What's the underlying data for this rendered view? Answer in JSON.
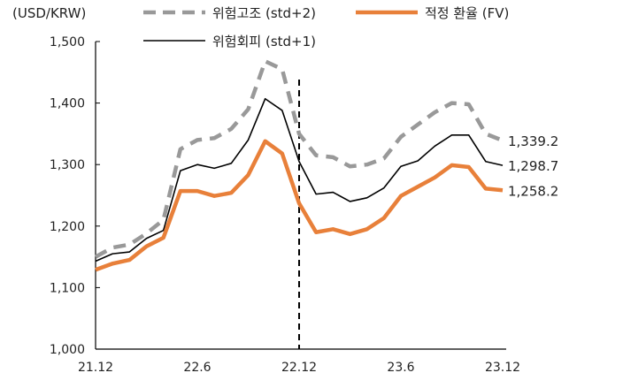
{
  "chart_data": {
    "type": "line",
    "ylabel": "(USD/KRW)",
    "ylim": [
      1000,
      1500
    ],
    "yticks": [
      1000,
      1100,
      1200,
      1300,
      1400,
      1500
    ],
    "ytick_labels": [
      "1,000",
      "1,100",
      "1,200",
      "1,300",
      "1,400",
      "1,500"
    ],
    "xtick_labels": [
      "21.12",
      "22.6",
      "22.12",
      "23.6",
      "23.12"
    ],
    "x": [
      "21.12",
      "22.1",
      "22.2",
      "22.3",
      "22.4",
      "22.5",
      "22.6",
      "22.7",
      "22.8",
      "22.9",
      "22.10",
      "22.11",
      "22.12",
      "23.1",
      "23.2",
      "23.3",
      "23.4",
      "23.5",
      "23.6",
      "23.7",
      "23.8",
      "23.9",
      "23.10",
      "23.11",
      "23.12"
    ],
    "vline_at": "22.12",
    "grid": false,
    "legend_placement": "top",
    "series": [
      {
        "name": "위험고조 (std+2)",
        "color": "#999999",
        "style": "dashed",
        "values": [
          1150,
          1165,
          1170,
          1188,
          1210,
          1325,
          1340,
          1343,
          1358,
          1390,
          1468,
          1455,
          1350,
          1315,
          1312,
          1297,
          1300,
          1310,
          1345,
          1365,
          1385,
          1400,
          1398,
          1350,
          1339.2
        ],
        "end_label": "1,339.2"
      },
      {
        "name": "위험회피 (std+1)",
        "color": "#000000",
        "style": "solid",
        "values": [
          1143,
          1155,
          1158,
          1180,
          1193,
          1290,
          1300,
          1294,
          1302,
          1340,
          1407,
          1388,
          1305,
          1252,
          1255,
          1240,
          1246,
          1262,
          1297,
          1306,
          1330,
          1348,
          1348,
          1305,
          1298.7
        ],
        "end_label": "1,298.7"
      },
      {
        "name": "적정 환율 (FV)",
        "color": "#E8803A",
        "style": "solid-thick",
        "values": [
          1129,
          1139,
          1145,
          1167,
          1181,
          1257,
          1257,
          1249,
          1254,
          1283,
          1338,
          1318,
          1237,
          1190,
          1195,
          1187,
          1195,
          1213,
          1249,
          1264,
          1279,
          1299,
          1296,
          1261,
          1258.2
        ],
        "end_label": "1,258.2"
      }
    ]
  }
}
